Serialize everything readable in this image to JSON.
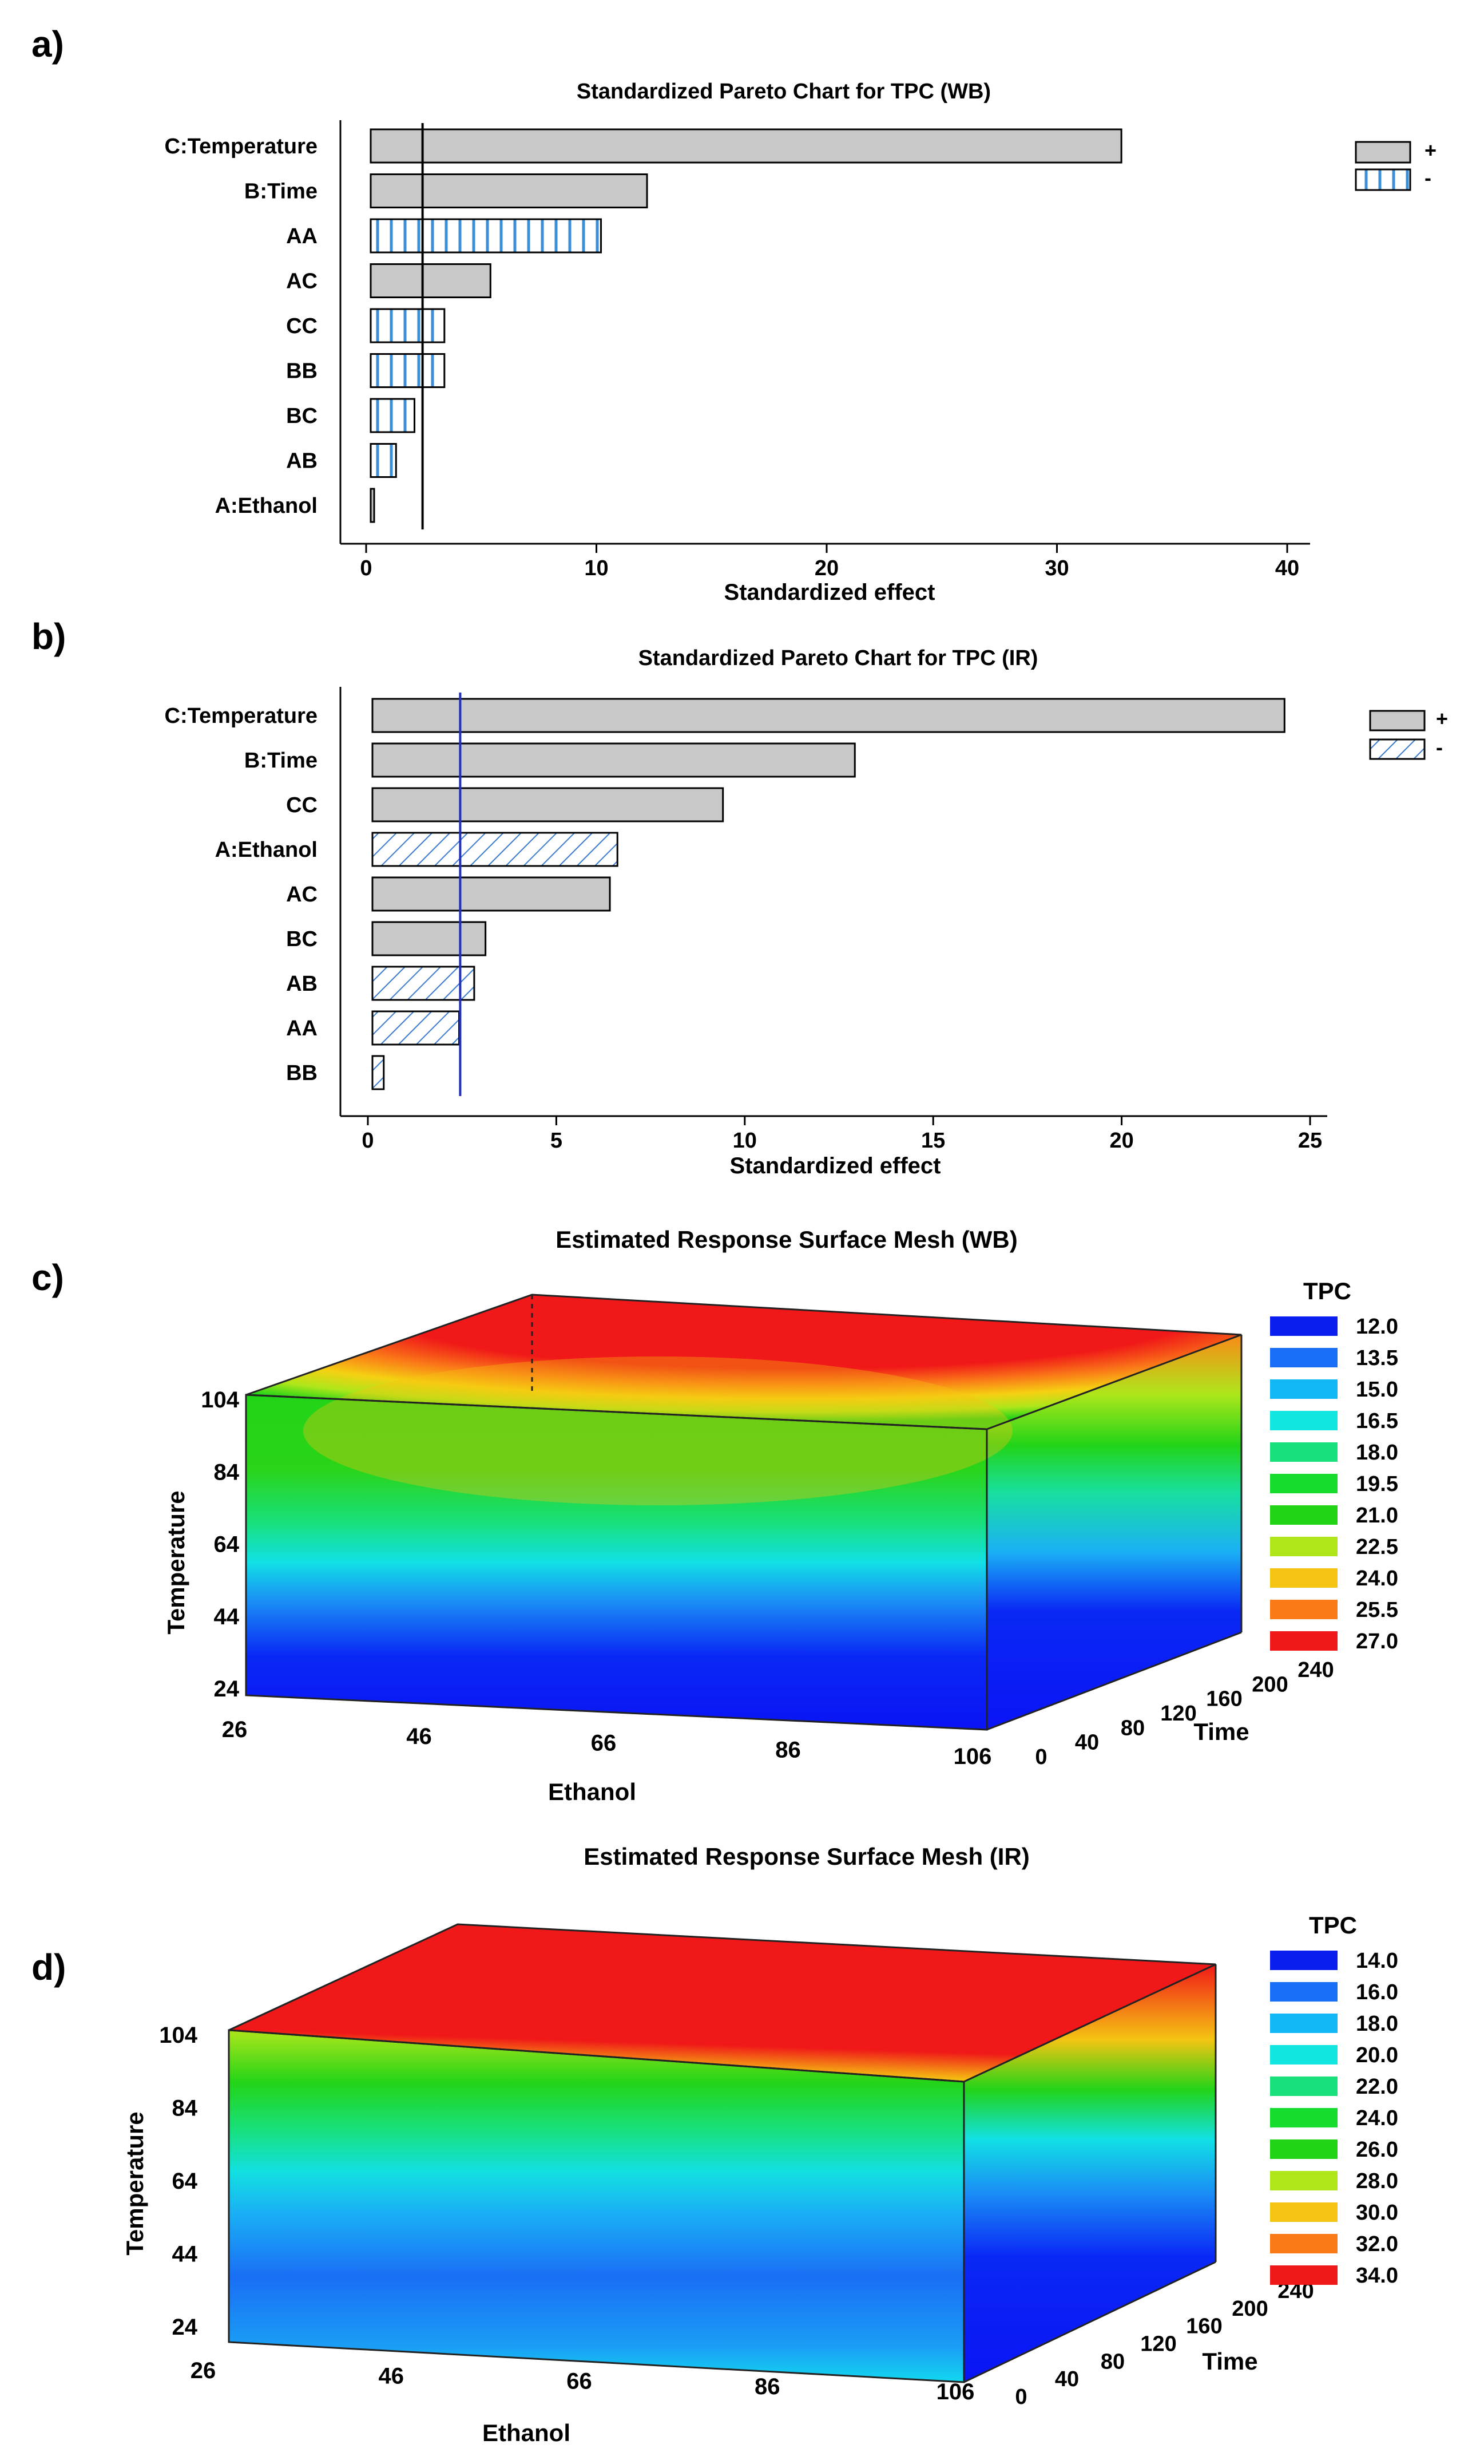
{
  "panels": [
    "a)",
    "b)",
    "c)",
    "d)"
  ],
  "chart_data": [
    {
      "type": "bar",
      "orientation": "horizontal",
      "title": "Standardized Pareto Chart for TPC (WB)",
      "xlabel": "Standardized effect",
      "xlim": [
        0,
        40
      ],
      "xticks": [
        0,
        10,
        20,
        30,
        40
      ],
      "reference_line": 2.45,
      "reference_line_color": "#000000",
      "legend": [
        "+",
        "-"
      ],
      "legend_placement": "top-right",
      "minus_pattern": "vertical-lines",
      "bars": [
        {
          "label": "C:Temperature",
          "value": 32.6,
          "sign": "+"
        },
        {
          "label": "B:Time",
          "value": 12.0,
          "sign": "+"
        },
        {
          "label": "AA",
          "value": 10.0,
          "sign": "-"
        },
        {
          "label": "AC",
          "value": 5.2,
          "sign": "+"
        },
        {
          "label": "CC",
          "value": 3.2,
          "sign": "-"
        },
        {
          "label": "BB",
          "value": 3.2,
          "sign": "-"
        },
        {
          "label": "BC",
          "value": 1.9,
          "sign": "-"
        },
        {
          "label": "AB",
          "value": 1.1,
          "sign": "-"
        },
        {
          "label": "A:Ethanol",
          "value": 0.1,
          "sign": "+"
        }
      ]
    },
    {
      "type": "bar",
      "orientation": "horizontal",
      "title": "Standardized Pareto Chart for TPC (IR)",
      "xlabel": "Standardized effect",
      "xlim": [
        0,
        25
      ],
      "xticks": [
        0,
        5,
        10,
        15,
        20,
        25
      ],
      "reference_line": 2.45,
      "reference_line_color": "#1f2fbf",
      "legend": [
        "+",
        "-"
      ],
      "legend_placement": "top-right",
      "minus_pattern": "diagonal-lines",
      "bars": [
        {
          "label": "C:Temperature",
          "value": 24.2,
          "sign": "+"
        },
        {
          "label": "B:Time",
          "value": 12.8,
          "sign": "+"
        },
        {
          "label": "CC",
          "value": 9.3,
          "sign": "+"
        },
        {
          "label": "A:Ethanol",
          "value": 6.5,
          "sign": "-"
        },
        {
          "label": "AC",
          "value": 6.3,
          "sign": "+"
        },
        {
          "label": "BC",
          "value": 3.0,
          "sign": "+"
        },
        {
          "label": "AB",
          "value": 2.7,
          "sign": "-"
        },
        {
          "label": "AA",
          "value": 2.3,
          "sign": "-"
        },
        {
          "label": "BB",
          "value": 0.3,
          "sign": "-"
        }
      ]
    },
    {
      "type": "surface",
      "title": "Estimated Response Surface Mesh (WB)",
      "xlabel": "Ethanol",
      "ylabel": "Time",
      "zlabel": "Temperature",
      "xticks": [
        "26",
        "46",
        "66",
        "86",
        "106"
      ],
      "yticks": [
        "0",
        "40",
        "80",
        "120",
        "160",
        "200",
        "240"
      ],
      "zticks": [
        "24",
        "44",
        "64",
        "84",
        "104"
      ],
      "legend_title": "TPC",
      "legend": [
        "12.0",
        "13.5",
        "15.0",
        "16.5",
        "18.0",
        "19.5",
        "21.0",
        "22.5",
        "24.0",
        "25.5",
        "27.0"
      ],
      "colors": [
        "#0a1ef0",
        "#1a6ef5",
        "#12b8f5",
        "#12e6e0",
        "#18e07a",
        "#16dc30",
        "#22d418",
        "#aee61a",
        "#f5c412",
        "#fa7a18",
        "#f01818"
      ]
    },
    {
      "type": "surface",
      "title": "Estimated Response Surface Mesh (IR)",
      "xlabel": "Ethanol",
      "ylabel": "Time",
      "zlabel": "Temperature",
      "xticks": [
        "26",
        "46",
        "66",
        "86",
        "106"
      ],
      "yticks": [
        "0",
        "40",
        "80",
        "120",
        "160",
        "200",
        "240"
      ],
      "zticks": [
        "24",
        "44",
        "64",
        "84",
        "104"
      ],
      "legend_title": "TPC",
      "legend": [
        "14.0",
        "16.0",
        "18.0",
        "20.0",
        "22.0",
        "24.0",
        "26.0",
        "28.0",
        "30.0",
        "32.0",
        "34.0"
      ],
      "colors": [
        "#0a1ef0",
        "#1a6ef5",
        "#12b8f5",
        "#12e6e0",
        "#18e07a",
        "#16dc30",
        "#22d418",
        "#aee61a",
        "#f5c412",
        "#fa7a18",
        "#f01818"
      ]
    }
  ]
}
